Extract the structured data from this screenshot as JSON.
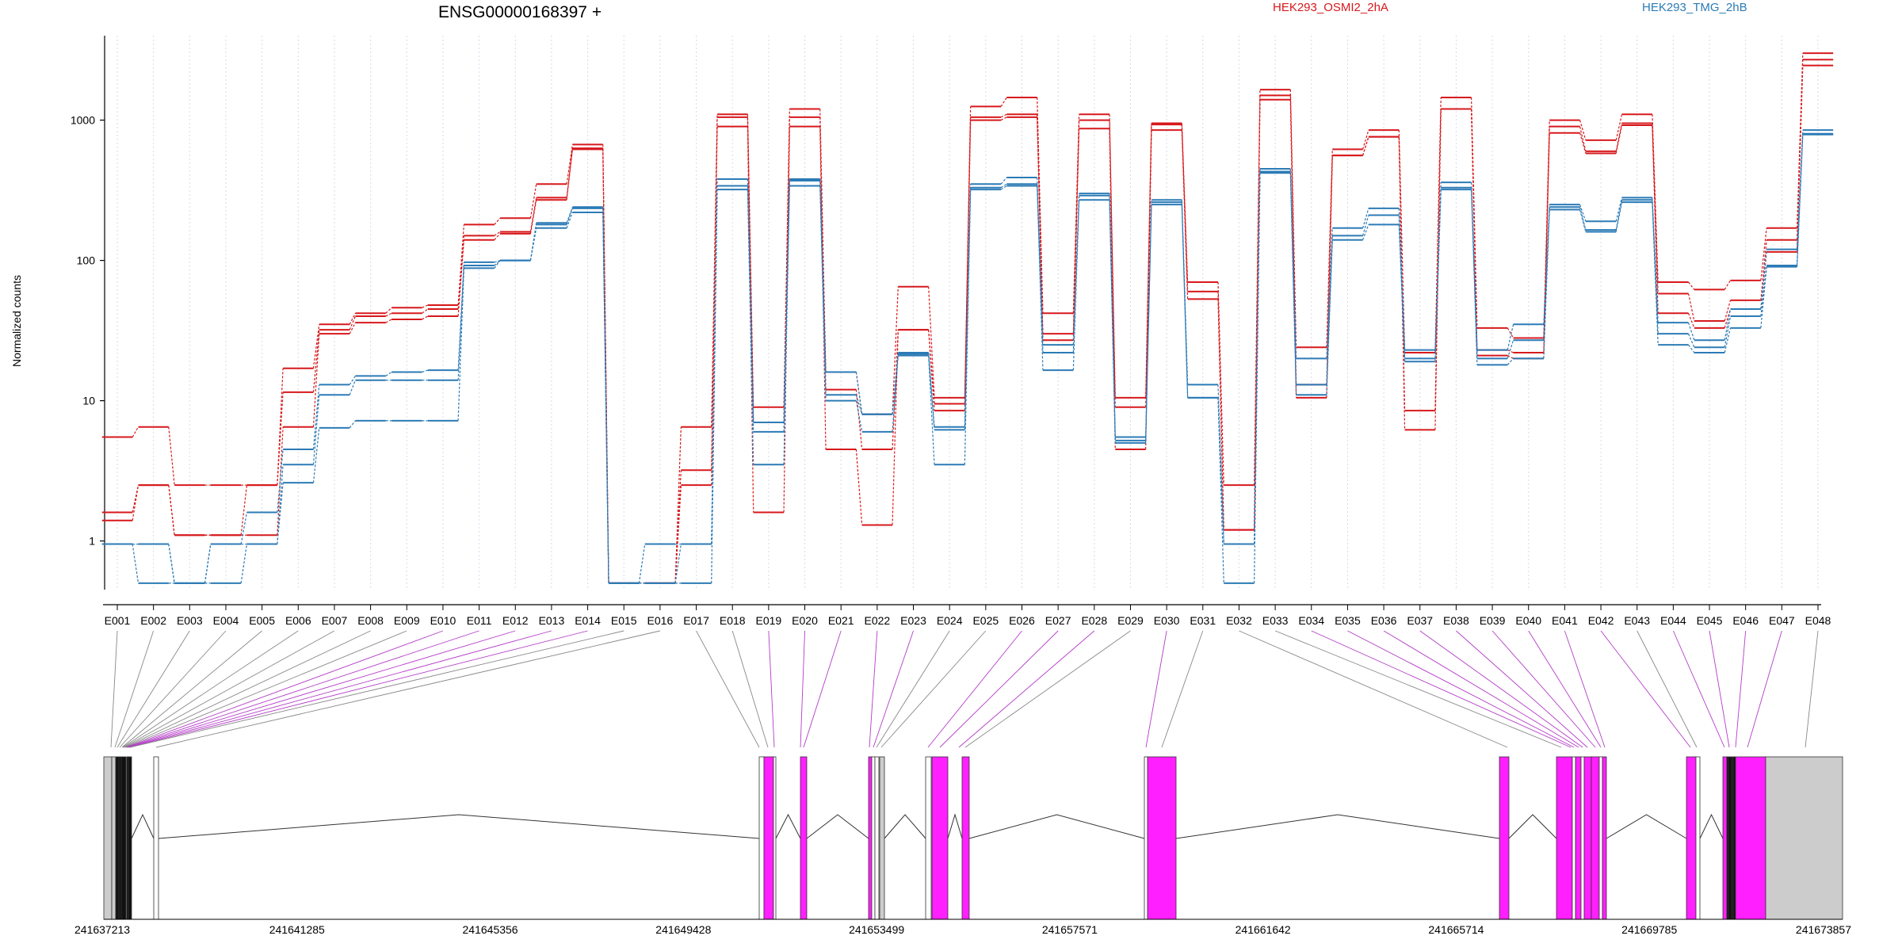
{
  "chart_data": {
    "type": "line",
    "title": "ENSG00000168397 +",
    "ylabel": "Normalized counts",
    "y_scale": "log",
    "ylim": [
      0.45,
      4000
    ],
    "yticks": [
      1,
      10,
      100,
      1000
    ],
    "ytick_labels": [
      "1",
      "10",
      "100",
      "1000"
    ],
    "grid": "vertical dotted per exon",
    "legend_position": "top",
    "exons": [
      "E001",
      "E002",
      "E003",
      "E004",
      "E005",
      "E006",
      "E007",
      "E008",
      "E009",
      "E010",
      "E011",
      "E012",
      "E013",
      "E014",
      "E015",
      "E016",
      "E017",
      "E018",
      "E019",
      "E020",
      "E021",
      "E022",
      "E023",
      "E024",
      "E025",
      "E026",
      "E027",
      "E028",
      "E029",
      "E030",
      "E031",
      "E032",
      "E033",
      "E034",
      "E035",
      "E036",
      "E037",
      "E038",
      "E039",
      "E040",
      "E041",
      "E042",
      "E043",
      "E044",
      "E045",
      "E046",
      "E047",
      "E048"
    ],
    "series": [
      {
        "name": "HEK293_OSMI2_2hA",
        "color": "#d7191c",
        "values": [
          5.5,
          6.5,
          2.5,
          2.5,
          2.5,
          17,
          35,
          42,
          46,
          48,
          180,
          200,
          350,
          670,
          0.5,
          0.5,
          6.5,
          1100,
          9,
          1200,
          16,
          8,
          65,
          10.5,
          1250,
          1450,
          42,
          1100,
          10.5,
          950,
          70,
          2.5,
          1650,
          24,
          620,
          850,
          22,
          1450,
          33,
          28,
          1000,
          720,
          1100,
          70,
          62,
          72,
          170,
          3000
        ]
      },
      {
        "name": "HEK293_OSMI2_2hA",
        "color": "#d7191c",
        "values": [
          1.6,
          2.5,
          1.1,
          1.1,
          2.5,
          11.5,
          32,
          40,
          42,
          45,
          150,
          160,
          280,
          630,
          0.5,
          0.5,
          3.2,
          1050,
          7,
          1050,
          12,
          4.5,
          32,
          9.5,
          1050,
          1100,
          30,
          1000,
          9,
          930,
          60,
          1.2,
          1500,
          13,
          560,
          760,
          8.5,
          1200,
          23,
          22,
          900,
          600,
          950,
          58,
          37,
          52,
          140,
          2700
        ]
      },
      {
        "name": "HEK293_OSMI2_2hA",
        "color": "#d7191c",
        "values": [
          1.4,
          2.5,
          1.1,
          1.1,
          1.1,
          6.5,
          30,
          36,
          38,
          40,
          140,
          155,
          270,
          620,
          0.5,
          0.5,
          2.5,
          900,
          1.6,
          900,
          4.5,
          1.3,
          32,
          8.5,
          1000,
          1050,
          27,
          870,
          4.5,
          850,
          53,
          1.2,
          1400,
          10.5,
          560,
          760,
          6.2,
          1200,
          21,
          20,
          810,
          580,
          920,
          42,
          33,
          45,
          115,
          2450
        ]
      },
      {
        "name": "HEK293_TMG_2hB",
        "color": "#2c7bb6",
        "values": [
          0.95,
          0.95,
          0.5,
          0.95,
          1.6,
          4.5,
          13,
          15,
          16,
          16.5,
          97,
          100,
          185,
          240,
          0.5,
          0.95,
          0.95,
          380,
          7,
          380,
          16,
          8,
          22,
          6.5,
          350,
          390,
          25,
          300,
          5.5,
          270,
          13,
          0.95,
          450,
          20,
          170,
          235,
          23,
          360,
          23,
          35,
          250,
          190,
          280,
          36,
          27,
          45,
          120,
          850
        ]
      },
      {
        "name": "HEK293_TMG_2hB",
        "color": "#2c7bb6",
        "values": [
          0.95,
          0.95,
          0.5,
          0.95,
          0.95,
          3.5,
          11,
          14,
          14,
          14,
          92,
          100,
          180,
          235,
          0.5,
          0.5,
          0.95,
          340,
          6,
          370,
          11,
          8,
          21.5,
          6.2,
          330,
          350,
          22,
          290,
          5.2,
          260,
          10.5,
          0.95,
          430,
          13,
          150,
          210,
          20,
          330,
          20,
          27,
          240,
          165,
          270,
          30,
          24,
          40,
          92,
          800
        ]
      },
      {
        "name": "HEK293_TMG_2hB",
        "color": "#2c7bb6",
        "values": [
          0.95,
          0.5,
          0.5,
          0.5,
          0.95,
          2.6,
          6.4,
          7.2,
          7.2,
          7.2,
          88,
          100,
          170,
          220,
          0.5,
          0.5,
          0.5,
          320,
          3.5,
          340,
          10,
          6,
          21,
          3.5,
          320,
          340,
          16.5,
          270,
          5,
          250,
          10.5,
          0.5,
          420,
          11,
          140,
          180,
          19,
          320,
          18,
          20,
          230,
          160,
          260,
          25,
          22,
          33,
          90,
          790
        ]
      }
    ],
    "genome": {
      "start": 241637213,
      "end": 241673857,
      "coordinate_ticks": [
        "241637213",
        "241641285",
        "241645356",
        "241649428",
        "241653499",
        "241657571",
        "241661642",
        "241665714",
        "241669785",
        "241673857"
      ]
    }
  },
  "colors": {
    "series_a": "#d7191c",
    "series_b": "#2c7bb6",
    "exon_grey": "#cccccc",
    "exon_highlight": "#ff1fff",
    "connector_grey": "#888888",
    "connector_purple": "#b43cc8"
  }
}
